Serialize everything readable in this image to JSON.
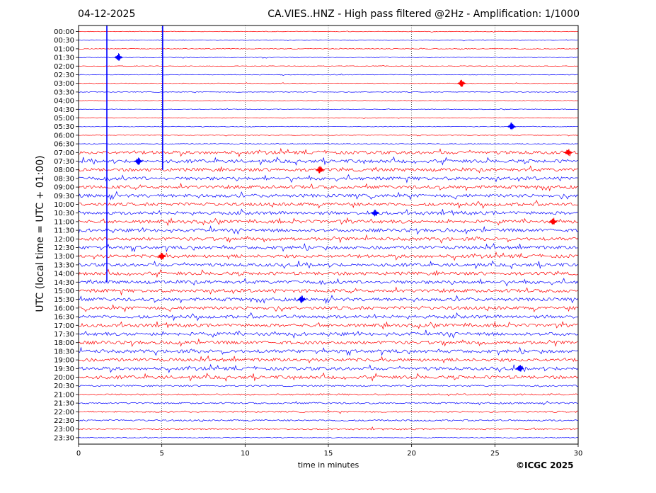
{
  "header": {
    "date": "04-12-2025",
    "title": "CA.VIES..HNZ - High pass filtered @2Hz - Amplification: 1/1000"
  },
  "footer": {
    "copyright": "©ICGC 2025"
  },
  "chart_data": {
    "type": "line",
    "title": "CA.VIES..HNZ - High pass filtered @2Hz - Amplification: 1/1000",
    "subtitle": "04-12-2025",
    "xlabel": "time in minutes",
    "ylabel": "UTC (local time = UTC + 01:00)",
    "xlim": [
      0,
      30
    ],
    "x_ticks": [
      0,
      5,
      10,
      15,
      20,
      25,
      30
    ],
    "x_grid": true,
    "trace_colors": [
      "#ff0000",
      "#0000ff"
    ],
    "rows": [
      "00:00",
      "00:30",
      "01:00",
      "01:30",
      "02:00",
      "02:30",
      "03:00",
      "03:30",
      "04:00",
      "04:30",
      "05:00",
      "05:30",
      "06:00",
      "06:30",
      "07:00",
      "07:30",
      "08:00",
      "08:30",
      "09:00",
      "09:30",
      "10:00",
      "10:30",
      "11:00",
      "11:30",
      "12:00",
      "12:30",
      "13:00",
      "13:30",
      "14:00",
      "14:30",
      "15:00",
      "15:30",
      "16:00",
      "16:30",
      "17:00",
      "17:30",
      "18:00",
      "18:30",
      "19:00",
      "19:30",
      "20:00",
      "20:30",
      "21:00",
      "21:30",
      "22:00",
      "22:30",
      "23:00",
      "23:30"
    ],
    "noise_level": [
      1,
      1,
      1,
      1,
      1,
      1,
      1,
      1,
      1,
      1,
      1,
      1,
      1,
      1,
      3,
      3,
      3,
      3,
      3,
      3,
      3,
      3,
      3,
      3,
      3,
      3,
      3,
      3,
      3,
      3,
      3,
      3,
      3,
      3,
      3,
      3,
      3,
      3,
      3,
      3,
      3,
      2,
      2,
      2,
      2,
      2,
      2,
      1
    ],
    "vertical_lines_x": [
      1.7,
      5.05
    ],
    "notable_events": [
      {
        "row": "01:30",
        "x": 2.4
      },
      {
        "row": "03:00",
        "x": 23.0
      },
      {
        "row": "05:30",
        "x": 26.0
      },
      {
        "row": "07:00",
        "x": 29.4
      },
      {
        "row": "07:30",
        "x": 3.6
      },
      {
        "row": "08:00",
        "x": 14.5
      },
      {
        "row": "10:30",
        "x": 17.8
      },
      {
        "row": "11:00",
        "x": 28.5
      },
      {
        "row": "13:00",
        "x": 5.0
      },
      {
        "row": "15:30",
        "x": 13.4
      },
      {
        "row": "19:30",
        "x": 26.5
      }
    ]
  }
}
